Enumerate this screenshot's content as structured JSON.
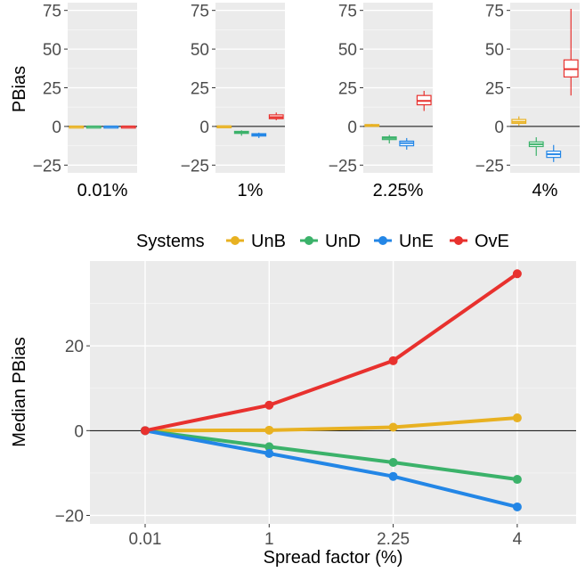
{
  "top": {
    "ylabel": "PBias",
    "yticks": [
      -25,
      0,
      25,
      50,
      75
    ],
    "ylim": [
      -30,
      80
    ],
    "panels": [
      {
        "label": "0.01%",
        "boxes": [
          {
            "system": "UnB",
            "min": -0.3,
            "q1": -0.1,
            "median": 0,
            "q3": 0.1,
            "max": 0.3
          },
          {
            "system": "UnD",
            "min": -0.3,
            "q1": -0.1,
            "median": 0,
            "q3": 0.1,
            "max": 0.3
          },
          {
            "system": "UnE",
            "min": -0.3,
            "q1": -0.1,
            "median": 0,
            "q3": 0.1,
            "max": 0.3
          },
          {
            "system": "OvE",
            "min": -0.3,
            "q1": -0.1,
            "median": 0,
            "q3": 0.1,
            "max": 0.3
          }
        ]
      },
      {
        "label": "1%",
        "boxes": [
          {
            "system": "UnB",
            "min": -0.5,
            "q1": -0.2,
            "median": 0.1,
            "q3": 0.3,
            "max": 0.6
          },
          {
            "system": "UnD",
            "min": -6,
            "q1": -4.5,
            "median": -3.8,
            "q3": -3.2,
            "max": -2.5
          },
          {
            "system": "UnE",
            "min": -7.5,
            "q1": -6.2,
            "median": -5.4,
            "q3": -4.7,
            "max": -4
          },
          {
            "system": "OvE",
            "min": 4,
            "q1": 5,
            "median": 6,
            "q3": 7.5,
            "max": 9
          }
        ]
      },
      {
        "label": "2.25%",
        "boxes": [
          {
            "system": "UnB",
            "min": 0,
            "q1": 0.4,
            "median": 0.8,
            "q3": 1.2,
            "max": 1.6
          },
          {
            "system": "UnD",
            "min": -11,
            "q1": -8.5,
            "median": -7.5,
            "q3": -6.8,
            "max": -5.5
          },
          {
            "system": "UnE",
            "min": -15,
            "q1": -12.5,
            "median": -10.8,
            "q3": -9.5,
            "max": -7.5
          },
          {
            "system": "OvE",
            "min": 10,
            "q1": 14,
            "median": 16.5,
            "q3": 20,
            "max": 23
          }
        ]
      },
      {
        "label": "4%",
        "boxes": [
          {
            "system": "UnB",
            "min": 0.5,
            "q1": 2,
            "median": 3,
            "q3": 4.5,
            "max": 6.5
          },
          {
            "system": "UnD",
            "min": -19,
            "q1": -13,
            "median": -11.5,
            "q3": -10,
            "max": -7
          },
          {
            "system": "UnE",
            "min": -23,
            "q1": -20,
            "median": -18,
            "q3": -16,
            "max": -12
          },
          {
            "system": "OvE",
            "min": 20,
            "q1": 32,
            "median": 37,
            "q3": 43,
            "max": 76
          }
        ]
      }
    ]
  },
  "legend": {
    "title": "Systems",
    "items": [
      {
        "name": "UnB",
        "color": "#E8B121"
      },
      {
        "name": "UnD",
        "color": "#3BB26A"
      },
      {
        "name": "UnE",
        "color": "#2386E6"
      },
      {
        "name": "OvE",
        "color": "#E8312E"
      }
    ]
  },
  "chart_data": {
    "type": "line",
    "x": [
      0.01,
      1,
      2.25,
      4
    ],
    "xticklabels": [
      "0.01",
      "1",
      "2.25",
      "4"
    ],
    "xlabel": "Spread factor (%)",
    "ylabel": "Median PBias",
    "yticks": [
      -20,
      0,
      20
    ],
    "ylim": [
      -22,
      40
    ],
    "series": [
      {
        "name": "UnB",
        "values": [
          0,
          0.1,
          0.8,
          3
        ]
      },
      {
        "name": "UnD",
        "values": [
          0,
          -3.8,
          -7.5,
          -11.5
        ]
      },
      {
        "name": "UnE",
        "values": [
          0,
          -5.4,
          -10.8,
          -18
        ]
      },
      {
        "name": "OvE",
        "values": [
          0,
          6,
          16.5,
          37
        ]
      }
    ],
    "grid": true,
    "legend_position": "top"
  }
}
